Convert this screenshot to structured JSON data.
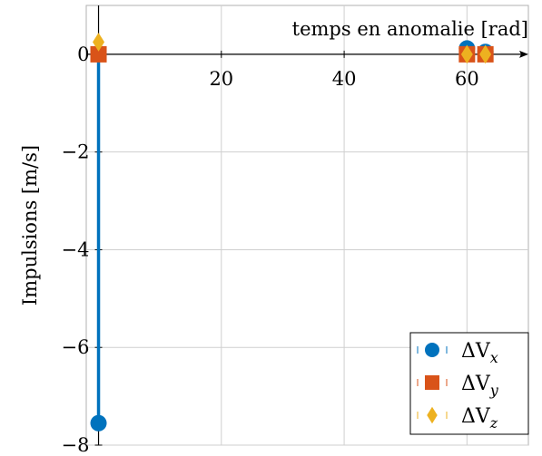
{
  "chart_data": {
    "type": "scatter",
    "title": "",
    "xlabel": "temps en anomalie [rad]",
    "ylabel": "Impulsions [m/s]",
    "xlim": [
      -2,
      70
    ],
    "ylim": [
      -8,
      1
    ],
    "xticks": [
      20,
      40,
      60
    ],
    "yticks": [
      0,
      -2,
      -4,
      -6,
      -8
    ],
    "xtick_labels": [
      "20",
      "40",
      "60"
    ],
    "ytick_labels": [
      "0",
      "−2",
      "−4",
      "−6",
      "−8"
    ],
    "grid": true,
    "legend_position": "bottom-right",
    "series": [
      {
        "name": "ΔVx",
        "legend_main": "ΔV",
        "legend_sub": "x",
        "marker": "circle",
        "color": "#0072bd",
        "x": [
          0,
          60,
          63
        ],
        "y": [
          -7.55,
          0.12,
          0.05
        ]
      },
      {
        "name": "ΔVy",
        "legend_main": "ΔV",
        "legend_sub": "y",
        "marker": "square",
        "color": "#d95319",
        "x": [
          0,
          60,
          63
        ],
        "y": [
          0,
          0,
          0
        ]
      },
      {
        "name": "ΔVz",
        "legend_main": "ΔV",
        "legend_sub": "z",
        "marker": "diamond",
        "color": "#edb120",
        "x": [
          0,
          60,
          63
        ],
        "y": [
          0.25,
          0,
          0
        ]
      }
    ]
  }
}
